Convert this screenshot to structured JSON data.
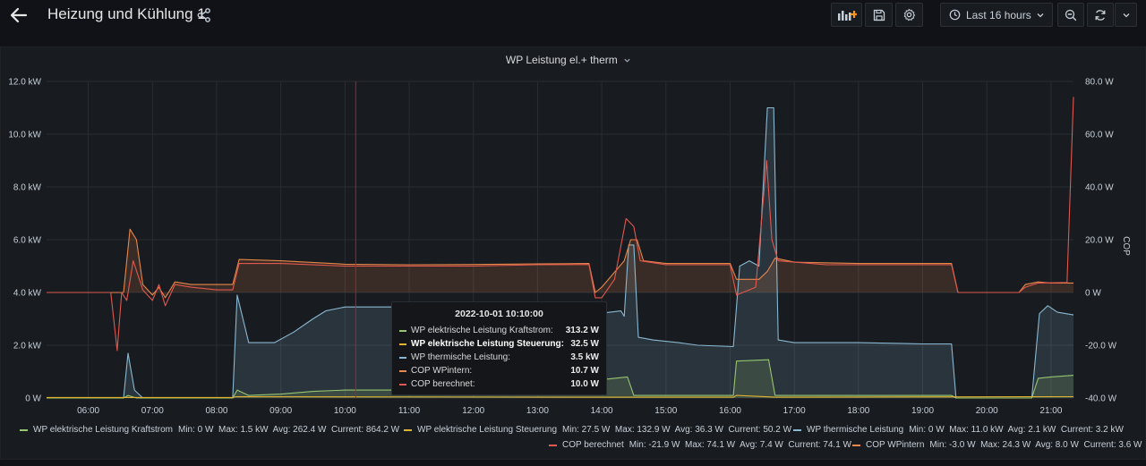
{
  "header": {
    "title": "Heizung und Kühlung 1",
    "time_range": "Last 16 hours"
  },
  "panel": {
    "title": "WP Leistung el.+ therm"
  },
  "tooltip": {
    "time": "2022-10-01 10:10:00",
    "rows": [
      {
        "name": "WP elektrische Leistung Kraftstrom:",
        "value": "313.2 W",
        "color": "#96c46f",
        "highlight": false
      },
      {
        "name": "WP elektrische Leistung Steuerung:",
        "value": "32.5 W",
        "color": "#e0b42e",
        "highlight": true
      },
      {
        "name": "WP thermische Leistung:",
        "value": "3.5 kW",
        "color": "#8ab8d2",
        "highlight": false
      },
      {
        "name": "COP WPintern:",
        "value": "10.7 W",
        "color": "#e8874a",
        "highlight": false
      },
      {
        "name": "COP berechnet:",
        "value": "10.0 W",
        "color": "#e0584f",
        "highlight": false
      }
    ]
  },
  "legend": [
    {
      "name": "WP elektrische Leistung Kraftstrom",
      "stats": "Min: 0 W   Max: 1.5 kW   Avg: 262.4 W   Current: 864.2 W",
      "color": "#96c46f"
    },
    {
      "name": "WP elektrische Leistung Steuerung",
      "stats": "Min: 27.5 W   Max: 132.9 W   Avg: 36.3 W   Current: 50.2 W",
      "color": "#e0b42e"
    },
    {
      "name": "WP thermische Leistung",
      "stats": "Min: 0 W   Max: 11.0 kW   Avg: 2.1 kW   Current: 3.2 kW",
      "color": "#8ab8d2"
    },
    {
      "name": "COP berechnet",
      "stats": "Min: -21.9 W   Max: 74.1 W   Avg: 7.4 W   Current: 74.1 W",
      "color": "#e0584f"
    },
    {
      "name": "COP WPintern",
      "stats": "Min: -3.0 W   Max: 24.3 W   Avg: 8.0 W   Current: 3.6 W",
      "color": "#e8874a"
    }
  ],
  "chart_data": {
    "type": "line",
    "y_left": {
      "ticks": [
        "0 W",
        "2.0 kW",
        "4.0 kW",
        "6.0 kW",
        "8.0 kW",
        "10.0 kW",
        "12.0 kW"
      ],
      "values": [
        0,
        2,
        4,
        6,
        8,
        10,
        12
      ],
      "unit": "kW",
      "range": [
        0,
        12
      ]
    },
    "y_right": {
      "label": "COP",
      "ticks": [
        "-40.0 W",
        "-20.0 W",
        "0 W",
        "20.0 W",
        "40.0 W",
        "60.0 W",
        "80.0 W"
      ],
      "values": [
        -40,
        -20,
        0,
        20,
        40,
        60,
        80
      ],
      "range": [
        -40,
        80
      ]
    },
    "x": {
      "range": [
        5.35,
        21.35
      ],
      "ticks": [
        "06:00",
        "07:00",
        "08:00",
        "09:00",
        "10:00",
        "11:00",
        "12:00",
        "13:00",
        "14:00",
        "15:00",
        "16:00",
        "17:00",
        "18:00",
        "19:00",
        "20:00",
        "21:00"
      ],
      "tick_hours": [
        6,
        7,
        8,
        9,
        10,
        11,
        12,
        13,
        14,
        15,
        16,
        17,
        18,
        19,
        20,
        21
      ]
    },
    "cursor_hour": 10.167,
    "series": [
      {
        "name": "WP thermische Leistung",
        "axis": "left",
        "color": "#8ab8d2",
        "fill": true,
        "points": [
          [
            5.35,
            0
          ],
          [
            6.55,
            0
          ],
          [
            6.62,
            1.7
          ],
          [
            6.72,
            0.3
          ],
          [
            6.85,
            0
          ],
          [
            8.25,
            0
          ],
          [
            8.32,
            3.9
          ],
          [
            8.5,
            2.1
          ],
          [
            8.9,
            2.1
          ],
          [
            9.2,
            2.5
          ],
          [
            9.5,
            3.0
          ],
          [
            9.7,
            3.3
          ],
          [
            10.0,
            3.45
          ],
          [
            10.5,
            3.45
          ],
          [
            11,
            3.45
          ],
          [
            13.9,
            3.45
          ],
          [
            13.95,
            3.2
          ],
          [
            14.3,
            3.3
          ],
          [
            14.35,
            3.1
          ],
          [
            14.42,
            5.8
          ],
          [
            14.5,
            5.8
          ],
          [
            14.57,
            2.3
          ],
          [
            14.8,
            2.2
          ],
          [
            15.2,
            2.1
          ],
          [
            15.5,
            2.0
          ],
          [
            16.05,
            1.95
          ],
          [
            16.15,
            5.0
          ],
          [
            16.3,
            5.2
          ],
          [
            16.45,
            5.0
          ],
          [
            16.58,
            11.0
          ],
          [
            16.68,
            11.0
          ],
          [
            16.75,
            2.2
          ],
          [
            17.0,
            2.1
          ],
          [
            18.0,
            2.1
          ],
          [
            19.0,
            2.05
          ],
          [
            19.45,
            2.05
          ],
          [
            19.52,
            0
          ],
          [
            20.7,
            0
          ],
          [
            20.82,
            3.2
          ],
          [
            20.95,
            3.5
          ],
          [
            21.1,
            3.25
          ],
          [
            21.35,
            3.15
          ]
        ]
      },
      {
        "name": "WP elektrische Leistung Kraftstrom",
        "axis": "left",
        "color": "#96c46f",
        "fill": true,
        "points": [
          [
            5.35,
            0
          ],
          [
            6.55,
            0
          ],
          [
            6.62,
            0.1
          ],
          [
            6.75,
            0
          ],
          [
            8.25,
            0
          ],
          [
            8.32,
            0.3
          ],
          [
            8.5,
            0.1
          ],
          [
            9.0,
            0.15
          ],
          [
            9.5,
            0.25
          ],
          [
            10.0,
            0.3
          ],
          [
            13.9,
            0.3
          ],
          [
            14.0,
            0.7
          ],
          [
            14.4,
            0.8
          ],
          [
            14.5,
            0.1
          ],
          [
            15.5,
            0.1
          ],
          [
            16.05,
            0.1
          ],
          [
            16.1,
            1.4
          ],
          [
            16.6,
            1.45
          ],
          [
            16.7,
            0.1
          ],
          [
            19.45,
            0.1
          ],
          [
            19.52,
            0
          ],
          [
            20.7,
            0
          ],
          [
            20.8,
            0.75
          ],
          [
            21.0,
            0.8
          ],
          [
            21.35,
            0.86
          ]
        ]
      },
      {
        "name": "WP elektrische Leistung Steuerung",
        "axis": "left",
        "color": "#e0b42e",
        "fill": false,
        "points": [
          [
            5.35,
            0.02
          ],
          [
            8.25,
            0.02
          ],
          [
            8.3,
            0.05
          ],
          [
            13.9,
            0.03
          ],
          [
            16.05,
            0.03
          ],
          [
            16.1,
            0.1
          ],
          [
            16.7,
            0.03
          ],
          [
            21.35,
            0.05
          ]
        ]
      },
      {
        "name": "COP WPintern",
        "axis": "right",
        "color": "#e8874a",
        "fill": true,
        "points": [
          [
            5.35,
            0
          ],
          [
            6.55,
            0
          ],
          [
            6.65,
            24
          ],
          [
            6.75,
            20
          ],
          [
            6.85,
            3
          ],
          [
            7.0,
            -1
          ],
          [
            7.1,
            2
          ],
          [
            7.2,
            -2
          ],
          [
            7.35,
            4
          ],
          [
            7.6,
            3
          ],
          [
            8.0,
            3
          ],
          [
            8.25,
            3
          ],
          [
            8.35,
            12.5
          ],
          [
            9,
            12
          ],
          [
            10,
            10.7
          ],
          [
            11,
            10.5
          ],
          [
            12,
            10.6
          ],
          [
            13,
            10.8
          ],
          [
            13.8,
            11
          ],
          [
            13.9,
            0
          ],
          [
            14.0,
            2
          ],
          [
            14.35,
            12
          ],
          [
            14.45,
            20
          ],
          [
            14.55,
            20
          ],
          [
            14.65,
            12
          ],
          [
            15.0,
            11
          ],
          [
            16.0,
            11
          ],
          [
            16.1,
            5
          ],
          [
            16.45,
            5
          ],
          [
            16.58,
            8
          ],
          [
            16.7,
            13
          ],
          [
            17.0,
            11.5
          ],
          [
            18,
            11
          ],
          [
            19.0,
            11
          ],
          [
            19.45,
            11
          ],
          [
            19.55,
            0
          ],
          [
            20.3,
            0
          ],
          [
            20.5,
            0
          ],
          [
            20.6,
            3
          ],
          [
            20.8,
            4
          ],
          [
            21.0,
            3.6
          ],
          [
            21.35,
            3.6
          ]
        ]
      },
      {
        "name": "COP berechnet",
        "axis": "right",
        "color": "#e0584f",
        "fill": false,
        "points": [
          [
            5.35,
            0
          ],
          [
            6.35,
            0
          ],
          [
            6.45,
            -22
          ],
          [
            6.52,
            0
          ],
          [
            6.6,
            -3
          ],
          [
            6.7,
            12
          ],
          [
            6.85,
            1
          ],
          [
            7.0,
            -3
          ],
          [
            7.1,
            3
          ],
          [
            7.2,
            -5
          ],
          [
            7.35,
            3
          ],
          [
            7.6,
            2
          ],
          [
            8.0,
            1
          ],
          [
            8.25,
            1
          ],
          [
            8.35,
            11
          ],
          [
            9,
            11
          ],
          [
            10,
            10
          ],
          [
            11,
            10
          ],
          [
            12,
            10
          ],
          [
            13.0,
            10.5
          ],
          [
            13.8,
            10.6
          ],
          [
            13.9,
            -2
          ],
          [
            14.0,
            -2
          ],
          [
            14.2,
            5
          ],
          [
            14.38,
            28
          ],
          [
            14.5,
            25
          ],
          [
            14.6,
            12
          ],
          [
            15.0,
            10.5
          ],
          [
            16.0,
            10.5
          ],
          [
            16.1,
            -1
          ],
          [
            16.4,
            2
          ],
          [
            16.57,
            50
          ],
          [
            16.65,
            20
          ],
          [
            16.75,
            12
          ],
          [
            17.5,
            10.5
          ],
          [
            18.5,
            10.5
          ],
          [
            19.45,
            10.5
          ],
          [
            19.55,
            0
          ],
          [
            20.5,
            0
          ],
          [
            20.6,
            2
          ],
          [
            20.8,
            3.6
          ],
          [
            21.25,
            3.8
          ],
          [
            21.35,
            74.1
          ]
        ]
      }
    ]
  }
}
